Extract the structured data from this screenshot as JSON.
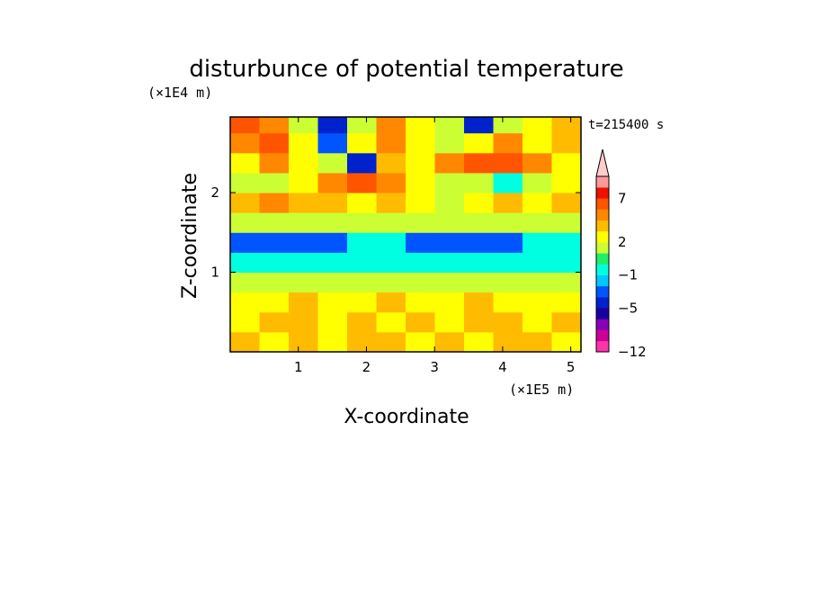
{
  "chart_data": {
    "type": "heatmap",
    "title": "disturbunce of potential temperature",
    "xlabel": "X-coordinate",
    "ylabel": "Z-coordinate",
    "x_unit": "(×1E5 m)",
    "y_unit": "(×1E4 m)",
    "time_label": "t=215400 s",
    "xlim": [
      0,
      5.15
    ],
    "ylim": [
      0,
      2.95
    ],
    "x_ticks": [
      1,
      2,
      3,
      4,
      5
    ],
    "y_ticks": [
      1,
      2
    ],
    "colorbar": {
      "levels": [
        -12,
        -11,
        -9,
        -7,
        -5,
        -4,
        -3,
        -1,
        0,
        1,
        2,
        3,
        4,
        5,
        7,
        9,
        11
      ],
      "labels": [
        -12,
        -5,
        -1,
        2,
        7
      ],
      "colors": [
        "#ff33aa",
        "#cc0099",
        "#8a00b8",
        "#1a00a0",
        "#0022cc",
        "#0055ff",
        "#00c8ff",
        "#00ffe0",
        "#22ee66",
        "#ccff33",
        "#ffff00",
        "#ffbb00",
        "#ff8800",
        "#ff5500",
        "#ee1100",
        "#ff9999",
        "#ffcccc"
      ],
      "extend_top": true
    },
    "rows": [
      {
        "z": 0.0,
        "values": [
          3,
          2,
          3,
          2,
          3,
          3,
          2,
          3,
          2,
          3,
          3,
          2
        ]
      },
      {
        "z": 0.25,
        "values": [
          2,
          3,
          3,
          2,
          3,
          2,
          3,
          2,
          3,
          3,
          2,
          3
        ]
      },
      {
        "z": 0.5,
        "values": [
          2,
          2,
          3,
          2,
          2,
          3,
          2,
          2,
          3,
          2,
          2,
          2
        ]
      },
      {
        "z": 0.75,
        "values": [
          1,
          1,
          1,
          1,
          1,
          1,
          1,
          1,
          1,
          1,
          1,
          1
        ]
      },
      {
        "z": 1.0,
        "values": [
          -1,
          -1,
          -1,
          -1,
          -1,
          -1,
          -1,
          -1,
          -1,
          -1,
          -1,
          -1
        ]
      },
      {
        "z": 1.25,
        "values": [
          -4,
          -4,
          -4,
          -4,
          -1,
          -1,
          -4,
          -4,
          -4,
          -4,
          -1,
          -1
        ]
      },
      {
        "z": 1.5,
        "values": [
          1,
          1,
          1,
          1,
          1,
          1,
          1,
          1,
          1,
          1,
          1,
          1
        ]
      },
      {
        "z": 1.75,
        "values": [
          3,
          4,
          3,
          3,
          2,
          3,
          2,
          1,
          2,
          3,
          2,
          3
        ]
      },
      {
        "z": 2.0,
        "values": [
          1,
          1,
          2,
          4,
          5,
          4,
          2,
          1,
          1,
          -1,
          1,
          2
        ]
      },
      {
        "z": 2.25,
        "values": [
          2,
          4,
          2,
          1,
          -5,
          3,
          2,
          4,
          5,
          5,
          4,
          2
        ]
      },
      {
        "z": 2.5,
        "values": [
          4,
          5,
          2,
          -4,
          2,
          4,
          2,
          1,
          2,
          4,
          2,
          3
        ]
      },
      {
        "z": 2.75,
        "values": [
          5,
          4,
          1,
          -5,
          1,
          4,
          2,
          1,
          -5,
          1,
          2,
          3
        ]
      }
    ]
  }
}
